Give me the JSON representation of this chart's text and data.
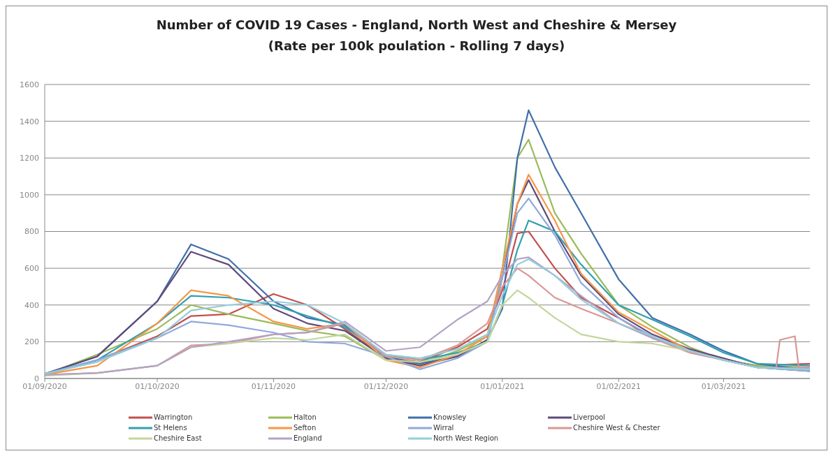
{
  "chart_data": {
    "type": "line",
    "title": "Number of COVID 19 Cases -  England, North West and Cheshire & Mersey (Rate per 100k poulation - Rolling 7 days)",
    "x": [
      "2020-09-01",
      "2020-09-15",
      "2020-10-01",
      "2020-10-10",
      "2020-10-20",
      "2020-11-01",
      "2020-11-10",
      "2020-11-20",
      "2020-12-01",
      "2020-12-10",
      "2020-12-20",
      "2020-12-28",
      "2021-01-01",
      "2021-01-05",
      "2021-01-08",
      "2021-01-15",
      "2021-01-22",
      "2021-02-01",
      "2021-02-10",
      "2021-02-20",
      "2021-03-01",
      "2021-03-10",
      "2021-03-24"
    ],
    "xlim": [
      "2020-09-01",
      "2021-03-24"
    ],
    "xticks": [
      {
        "value": "2020-09-01",
        "label": "01/09/2020"
      },
      {
        "value": "2020-10-01",
        "label": "01/10/2020"
      },
      {
        "value": "2020-11-01",
        "label": "01/11/2020"
      },
      {
        "value": "2020-12-01",
        "label": "01/12/2020"
      },
      {
        "value": "2021-01-01",
        "label": "01/01/2021"
      },
      {
        "value": "2021-02-01",
        "label": "01/02/2021"
      },
      {
        "value": "2021-03-01",
        "label": "01/03/2021"
      }
    ],
    "ylim": [
      0,
      1600
    ],
    "yticks": [
      0,
      200,
      400,
      600,
      800,
      1000,
      1200,
      1400,
      1600
    ],
    "grid": "y",
    "legend": "bottom",
    "marker": "none",
    "line_style": "solid",
    "series": [
      {
        "name": "Warrington",
        "color": "#c0504d",
        "values": [
          20,
          100,
          230,
          340,
          350,
          460,
          400,
          270,
          110,
          90,
          170,
          270,
          480,
          790,
          800,
          600,
          440,
          330,
          220,
          150,
          100,
          70,
          80
        ]
      },
      {
        "name": "Halton",
        "color": "#9bbb59",
        "values": [
          20,
          130,
          270,
          400,
          350,
          300,
          260,
          230,
          100,
          80,
          150,
          230,
          600,
          1200,
          1300,
          900,
          680,
          400,
          280,
          170,
          100,
          70,
          60
        ]
      },
      {
        "name": "Knowsley",
        "color": "#3f6fa8",
        "values": [
          25,
          120,
          420,
          730,
          650,
          420,
          330,
          290,
          120,
          80,
          120,
          210,
          380,
          1200,
          1460,
          1150,
          900,
          540,
          330,
          240,
          150,
          80,
          45
        ]
      },
      {
        "name": "Liverpool",
        "color": "#604a7b",
        "values": [
          25,
          120,
          420,
          690,
          620,
          380,
          300,
          260,
          110,
          70,
          120,
          210,
          550,
          950,
          1080,
          800,
          560,
          350,
          240,
          160,
          110,
          60,
          40
        ]
      },
      {
        "name": "St Helens",
        "color": "#31a0b0",
        "values": [
          25,
          100,
          300,
          450,
          440,
          400,
          340,
          280,
          130,
          100,
          140,
          200,
          400,
          700,
          860,
          800,
          620,
          400,
          320,
          230,
          140,
          80,
          70
        ]
      },
      {
        "name": "Sefton",
        "color": "#f79646",
        "values": [
          20,
          70,
          300,
          480,
          450,
          310,
          270,
          300,
          100,
          60,
          130,
          230,
          600,
          950,
          1110,
          860,
          570,
          360,
          260,
          150,
          100,
          60,
          50
        ]
      },
      {
        "name": "Wirral",
        "color": "#8faadc",
        "values": [
          25,
          100,
          220,
          310,
          290,
          250,
          200,
          190,
          120,
          50,
          110,
          200,
          550,
          900,
          980,
          780,
          520,
          330,
          230,
          150,
          100,
          60,
          40
        ]
      },
      {
        "name": "Cheshire West & Chester",
        "color": "#d99694",
        "x": [
          "2020-09-01",
          "2020-09-15",
          "2020-10-01",
          "2020-10-10",
          "2020-10-20",
          "2020-11-01",
          "2020-11-10",
          "2020-11-20",
          "2020-12-01",
          "2020-12-10",
          "2020-12-20",
          "2020-12-28",
          "2021-01-01",
          "2021-01-05",
          "2021-01-08",
          "2021-01-15",
          "2021-01-22",
          "2021-02-01",
          "2021-02-10",
          "2021-02-20",
          "2021-03-01",
          "2021-03-10",
          "2021-03-15",
          "2021-03-16",
          "2021-03-20",
          "2021-03-21",
          "2021-03-24"
        ],
        "values": [
          20,
          30,
          70,
          180,
          190,
          240,
          250,
          300,
          120,
          100,
          180,
          300,
          500,
          600,
          560,
          440,
          380,
          300,
          220,
          140,
          100,
          60,
          60,
          210,
          230,
          60,
          60
        ]
      },
      {
        "name": "Cheshire East",
        "color": "#c3d69b",
        "values": [
          15,
          30,
          70,
          170,
          190,
          220,
          210,
          240,
          100,
          90,
          130,
          200,
          400,
          480,
          440,
          330,
          240,
          200,
          190,
          150,
          100,
          60,
          50
        ]
      },
      {
        "name": "England",
        "color": "#b3a2c7",
        "values": [
          20,
          30,
          70,
          170,
          200,
          240,
          250,
          310,
          150,
          170,
          320,
          420,
          560,
          650,
          660,
          560,
          450,
          300,
          220,
          150,
          100,
          60,
          55
        ]
      },
      {
        "name": "North West Region",
        "color": "#93cddd",
        "values": [
          25,
          90,
          220,
          370,
          400,
          420,
          400,
          300,
          130,
          110,
          160,
          240,
          450,
          620,
          650,
          560,
          430,
          300,
          230,
          150,
          100,
          60,
          50
        ]
      }
    ]
  }
}
